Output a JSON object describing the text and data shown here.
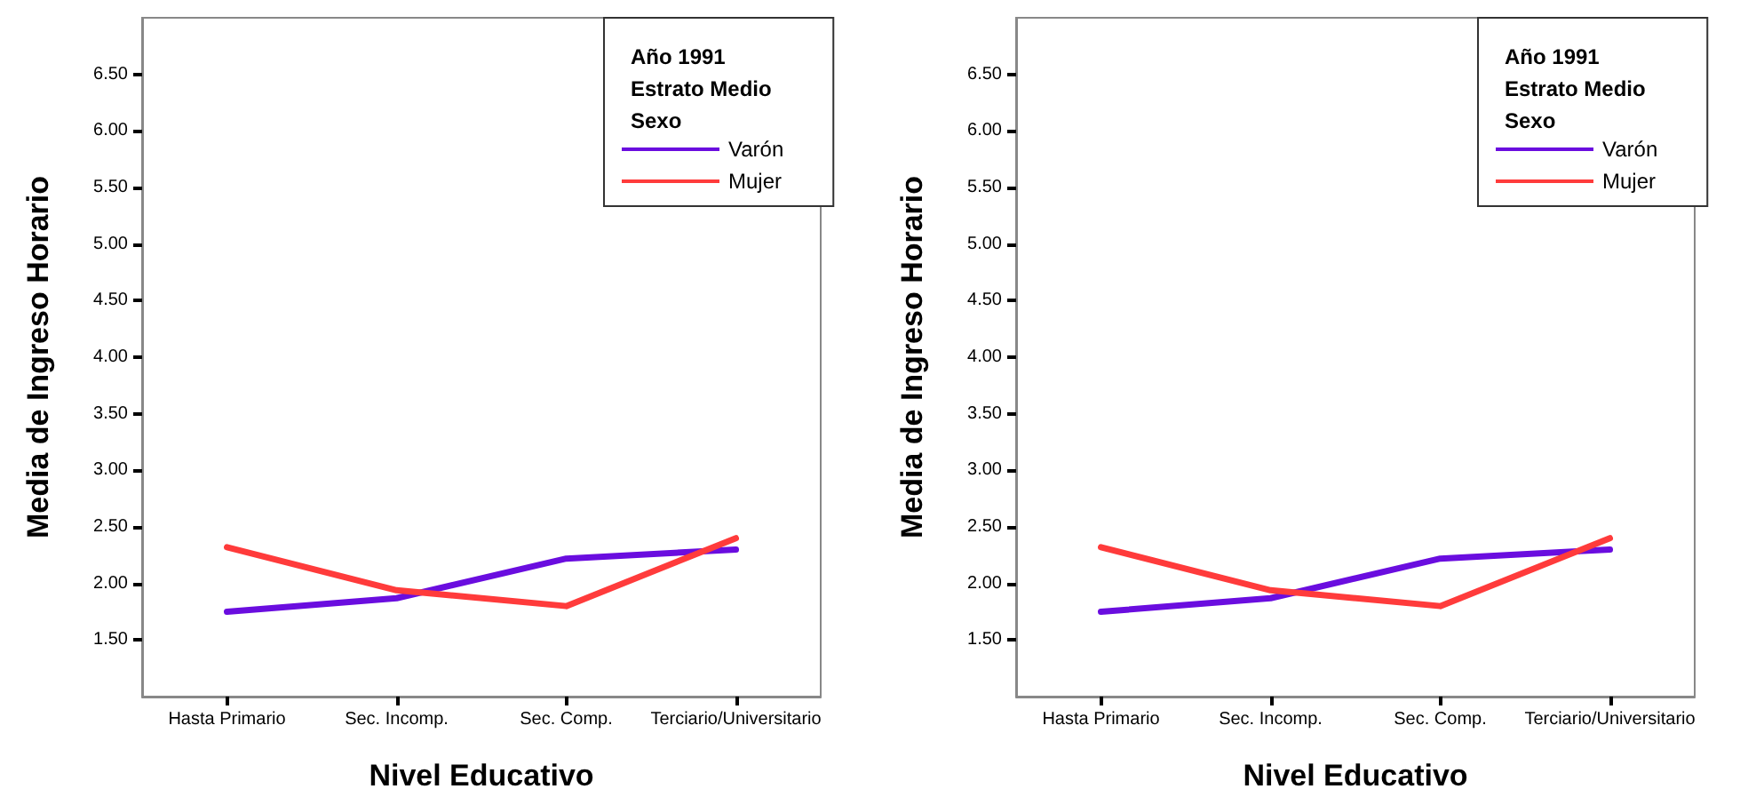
{
  "chart_data": [
    {
      "type": "line",
      "xlabel": "Nivel Educativo",
      "ylabel": "Media de Ingreso Horario",
      "legend_title": "Año 1991\nEstrato Medio\nSexo",
      "legend": "top right",
      "grid": false,
      "marker": "none",
      "line_style": "solid",
      "categories": [
        "Hasta Primario",
        "Sec. Incomp.",
        "Sec. Comp.",
        "Terciario/Universitario"
      ],
      "series": [
        {
          "name": "Varón",
          "color": "#6a0ddf",
          "values": [
            1.75,
            1.87,
            2.22,
            2.3
          ]
        },
        {
          "name": "Mujer",
          "color": "#ff3b3b",
          "values": [
            2.32,
            1.94,
            1.8,
            2.4
          ]
        }
      ],
      "ylim": [
        1.0,
        7.0
      ],
      "yticks": [
        {
          "value": 1.5,
          "label": "1.50"
        },
        {
          "value": 2.0,
          "label": "2.00"
        },
        {
          "value": 2.5,
          "label": "2.50"
        },
        {
          "value": 3.0,
          "label": "3.00"
        },
        {
          "value": 3.5,
          "label": "3.50"
        },
        {
          "value": 4.0,
          "label": "4.00"
        },
        {
          "value": 4.5,
          "label": "4.50"
        },
        {
          "value": 5.0,
          "label": "5.00"
        },
        {
          "value": 5.5,
          "label": "5.50"
        },
        {
          "value": 6.0,
          "label": "6.00"
        },
        {
          "value": 6.5,
          "label": "6.50"
        }
      ]
    },
    {
      "type": "line",
      "xlabel": "Nivel Educativo",
      "ylabel": "Media de Ingreso Horario",
      "legend_title": "Año 1991\nEstrato Medio\nSexo",
      "legend": "top right",
      "grid": false,
      "marker": "none",
      "line_style": "solid",
      "categories": [
        "Hasta Primario",
        "Sec. Incomp.",
        "Sec. Comp.",
        "Terciario/Universitario"
      ],
      "series": [
        {
          "name": "Varón",
          "color": "#6a0ddf",
          "values": [
            1.75,
            1.87,
            2.22,
            2.3
          ]
        },
        {
          "name": "Mujer",
          "color": "#ff3b3b",
          "values": [
            2.32,
            1.94,
            1.8,
            2.4
          ]
        }
      ],
      "ylim": [
        1.0,
        7.0
      ],
      "yticks": [
        {
          "value": 1.5,
          "label": "1.50"
        },
        {
          "value": 2.0,
          "label": "2.00"
        },
        {
          "value": 2.5,
          "label": "2.50"
        },
        {
          "value": 3.0,
          "label": "3.00"
        },
        {
          "value": 3.5,
          "label": "3.50"
        },
        {
          "value": 4.0,
          "label": "4.00"
        },
        {
          "value": 4.5,
          "label": "4.50"
        },
        {
          "value": 5.0,
          "label": "5.00"
        },
        {
          "value": 5.5,
          "label": "5.50"
        },
        {
          "value": 6.0,
          "label": "6.00"
        },
        {
          "value": 6.5,
          "label": "6.50"
        }
      ]
    }
  ]
}
